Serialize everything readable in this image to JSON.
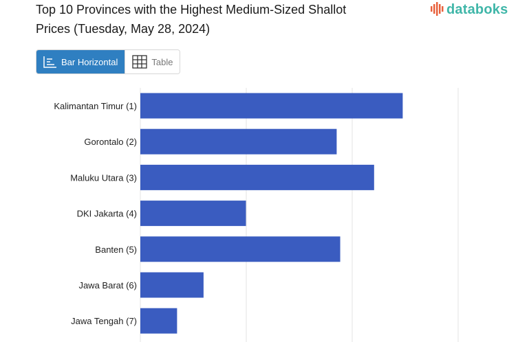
{
  "header": {
    "title_line1": "Top 10 Provinces with the Highest Medium-Sized Shallot",
    "title_line2": "Prices (Tuesday, May 28, 2024)",
    "brand": "databoks"
  },
  "toggle": {
    "bar_label": "Bar Horizontal",
    "table_label": "Table"
  },
  "colors": {
    "bar": "#3a5cc0",
    "grid": "#e3e3e3",
    "active_tab": "#2f7fc1",
    "brand": "#3fb6a8",
    "logo_bars": "#e8613c"
  },
  "chart_data": {
    "type": "bar",
    "orientation": "horizontal",
    "categories": [
      "Kalimantan Timur (1)",
      "Gorontalo (2)",
      "Maluku Utara (3)",
      "DKI Jakarta (4)",
      "Banten (5)",
      "Jawa Barat (6)",
      "Jawa Tengah (7)"
    ],
    "values": [
      74.3,
      55.6,
      66.2,
      29.9,
      56.6,
      17.9,
      10.4
    ],
    "xlim": [
      0,
      90
    ],
    "grid": true,
    "legend": "none"
  }
}
